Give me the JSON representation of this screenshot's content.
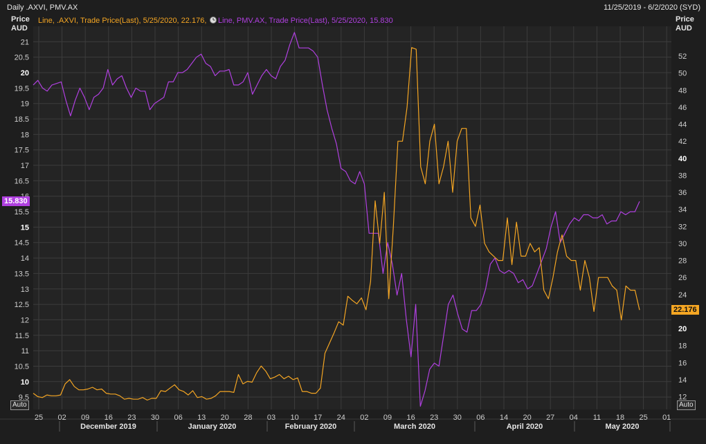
{
  "header": {
    "title": "Daily .AXVI, PMV.AX",
    "date_range": "11/25/2019 - 6/2/2020 (SYD)"
  },
  "auto_button": "Auto",
  "colors": {
    "background": "#1e1e1e",
    "plot_bg": "#242424",
    "grid": "#3c3c3c",
    "axvi": "#f5a623",
    "pmv": "#b040e0"
  },
  "chart_data": {
    "type": "line",
    "legend": {
      "placement": "top-left",
      "entries": [
        {
          "text": "Line, .AXVI, Trade Price(Last),  5/25/2020, 22.176,",
          "color": "#f5a623"
        },
        {
          "text": "Line, PMV.AX, Trade Price(Last),  5/25/2020, 15.830",
          "color": "#b040e0"
        }
      ]
    },
    "left_axis": {
      "title": [
        "Price",
        "AUD"
      ],
      "range": [
        9.1,
        21.5
      ],
      "ticks": [
        "9.5",
        "10",
        "10.5",
        "11",
        "11.5",
        "12",
        "12.5",
        "13",
        "13.5",
        "14",
        "14.5",
        "15",
        "15.5",
        "16",
        "16.5",
        "17",
        "17.5",
        "18",
        "18.5",
        "19",
        "19.5",
        "20",
        "20.5",
        "21"
      ],
      "bold_ticks": [
        "10",
        "15",
        "20"
      ]
    },
    "right_axis": {
      "title": [
        "Price",
        "AUD"
      ],
      "range": [
        10.5,
        55.5
      ],
      "ticks": [
        "12",
        "14",
        "16",
        "18",
        "20",
        "22",
        "24",
        "26",
        "28",
        "30",
        "32",
        "34",
        "36",
        "38",
        "40",
        "42",
        "44",
        "46",
        "48",
        "50",
        "52"
      ],
      "bold_ticks": [
        "20",
        "40"
      ]
    },
    "x_axis": {
      "day_labels": [
        "25",
        "02",
        "09",
        "16",
        "23",
        "30",
        "06",
        "13",
        "20",
        "28",
        "03",
        "10",
        "17",
        "24",
        "02",
        "09",
        "16",
        "23",
        "30",
        "06",
        "14",
        "20",
        "27",
        "04",
        "11",
        "18",
        "25",
        "01"
      ],
      "month_labels": [
        "December 2019",
        "January 2020",
        "February 2020",
        "March 2020",
        "April 2020",
        "May 2020"
      ]
    },
    "last_value_badges": {
      "pmv": "15.830",
      "axvi": "22.176"
    },
    "series": [
      {
        "name": "PMV.AX",
        "axis": "left",
        "color": "#b040e0",
        "values": [
          19.6,
          19.75,
          19.5,
          19.4,
          19.6,
          19.65,
          19.7,
          19.1,
          18.6,
          19.1,
          19.5,
          19.2,
          18.8,
          19.2,
          19.3,
          19.5,
          20.1,
          19.6,
          19.8,
          19.9,
          19.5,
          19.2,
          19.5,
          19.4,
          19.4,
          18.8,
          19.0,
          19.1,
          19.2,
          19.7,
          19.7,
          20.0,
          20.0,
          20.1,
          20.3,
          20.5,
          20.6,
          20.3,
          20.2,
          19.9,
          20.05,
          20.05,
          20.1,
          19.6,
          19.6,
          19.7,
          20.0,
          19.3,
          19.6,
          19.9,
          20.1,
          19.9,
          19.8,
          20.2,
          20.4,
          20.9,
          21.3,
          20.8,
          20.8,
          20.8,
          20.7,
          20.5,
          19.6,
          18.8,
          18.2,
          17.7,
          16.9,
          16.8,
          16.5,
          16.4,
          16.8,
          16.4,
          14.8,
          14.8,
          14.8,
          13.5,
          14.5,
          13.8,
          12.8,
          13.5,
          12.0,
          10.8,
          12.5,
          9.2,
          9.7,
          10.4,
          10.6,
          10.5,
          11.5,
          12.5,
          12.8,
          12.2,
          11.7,
          11.6,
          12.3,
          12.3,
          12.5,
          13.0,
          13.8,
          14.0,
          13.6,
          13.5,
          13.6,
          13.5,
          13.2,
          13.3,
          13.0,
          13.1,
          13.5,
          13.9,
          14.3,
          15.0,
          15.5,
          14.5,
          14.8,
          15.1,
          15.3,
          15.2,
          15.4,
          15.4,
          15.3,
          15.3,
          15.4,
          15.1,
          15.2,
          15.2,
          15.5,
          15.4,
          15.5,
          15.5,
          15.83
        ]
      },
      {
        "name": ".AXVI",
        "axis": "right",
        "color": "#f5a623",
        "values": [
          12.4,
          12.0,
          11.9,
          12.2,
          12.1,
          12.1,
          12.2,
          13.5,
          14.0,
          13.2,
          12.8,
          12.8,
          12.9,
          13.1,
          12.8,
          12.9,
          12.4,
          12.3,
          12.3,
          12.1,
          11.7,
          11.8,
          11.7,
          11.7,
          11.9,
          11.6,
          11.8,
          11.8,
          12.7,
          12.6,
          13.0,
          13.4,
          12.8,
          12.6,
          12.2,
          12.7,
          11.9,
          12.0,
          11.7,
          11.8,
          12.1,
          12.6,
          12.6,
          12.6,
          12.5,
          14.6,
          13.5,
          13.8,
          13.7,
          14.8,
          15.6,
          15.0,
          14.1,
          14.3,
          14.6,
          14.1,
          14.4,
          14.0,
          14.2,
          12.6,
          12.6,
          12.4,
          12.4,
          13.0,
          17.1,
          18.3,
          19.5,
          20.8,
          20.4,
          23.8,
          23.3,
          22.9,
          23.6,
          22.2,
          25.5,
          35.0,
          30.0,
          36.0,
          23.5,
          32.0,
          42.0,
          42.0,
          46.0,
          53.0,
          52.8,
          39.0,
          37.0,
          42.0,
          44.0,
          37.0,
          39.0,
          42.0,
          36.0,
          42.0,
          43.5,
          43.5,
          33.0,
          32.0,
          34.5,
          30.0,
          29.0,
          28.5,
          28.0,
          28.0,
          33.0,
          27.5,
          32.5,
          28.5,
          28.5,
          30.0,
          29.0,
          29.5,
          24.5,
          23.5,
          26.0,
          29.0,
          31.0,
          28.5,
          28.0,
          28.0,
          24.5,
          28.0,
          26.0,
          22.0,
          26.0,
          26.0,
          26.0,
          25.0,
          24.5,
          21.0,
          25.0,
          24.5,
          24.5,
          22.176
        ]
      }
    ]
  }
}
